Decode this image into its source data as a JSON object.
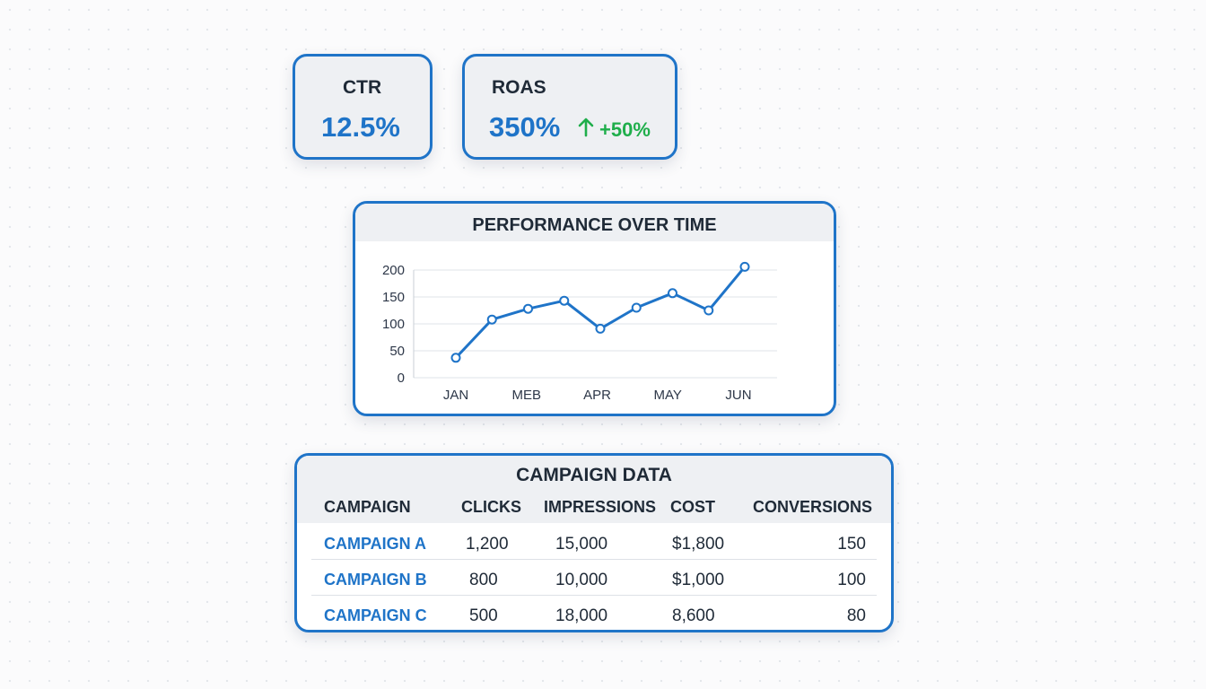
{
  "kpis": {
    "ctr": {
      "label": "CTR",
      "value": "12.5%"
    },
    "roas": {
      "label": "ROAS",
      "value": "350%",
      "change": "+50%"
    }
  },
  "performance": {
    "title": "PERFORMANCE OVER TIME"
  },
  "chart_data": {
    "type": "line",
    "title": "PERFORMANCE OVER TIME",
    "x_tick_labels": [
      "JAN",
      "MEB",
      "APR",
      "MAY",
      "JUN"
    ],
    "y_ticks": [
      0,
      50,
      100,
      150,
      200
    ],
    "ylim": [
      0,
      200
    ],
    "grid": true,
    "series": [
      {
        "values": [
          37,
          108,
          128,
          143,
          91,
          130,
          157,
          125,
          206
        ]
      }
    ],
    "colors": {
      "line": "#1f74c8"
    }
  },
  "campaigns": {
    "title": "CAMPAIGN DATA",
    "columns": [
      "CAMPAIGN",
      "CLICKS",
      "IMPRESSIONS",
      "COST",
      "CONVERSIONS"
    ],
    "rows": [
      {
        "name": "CAMPAIGN A",
        "clicks": "1,200",
        "impressions": "15,000",
        "cost": "$1,800",
        "conversions": "150"
      },
      {
        "name": "CAMPAIGN B",
        "clicks": "800",
        "impressions": "10,000",
        "cost": "$1,000",
        "conversions": "100"
      },
      {
        "name": "CAMPAIGN C",
        "clicks": "500",
        "impressions": "18,000",
        "cost": "8,600",
        "conversions": "80"
      }
    ]
  },
  "colors": {
    "accent": "#1f74c8",
    "positive": "#1fae4b"
  },
  "icons": {
    "trend": "arrow-up-icon"
  }
}
